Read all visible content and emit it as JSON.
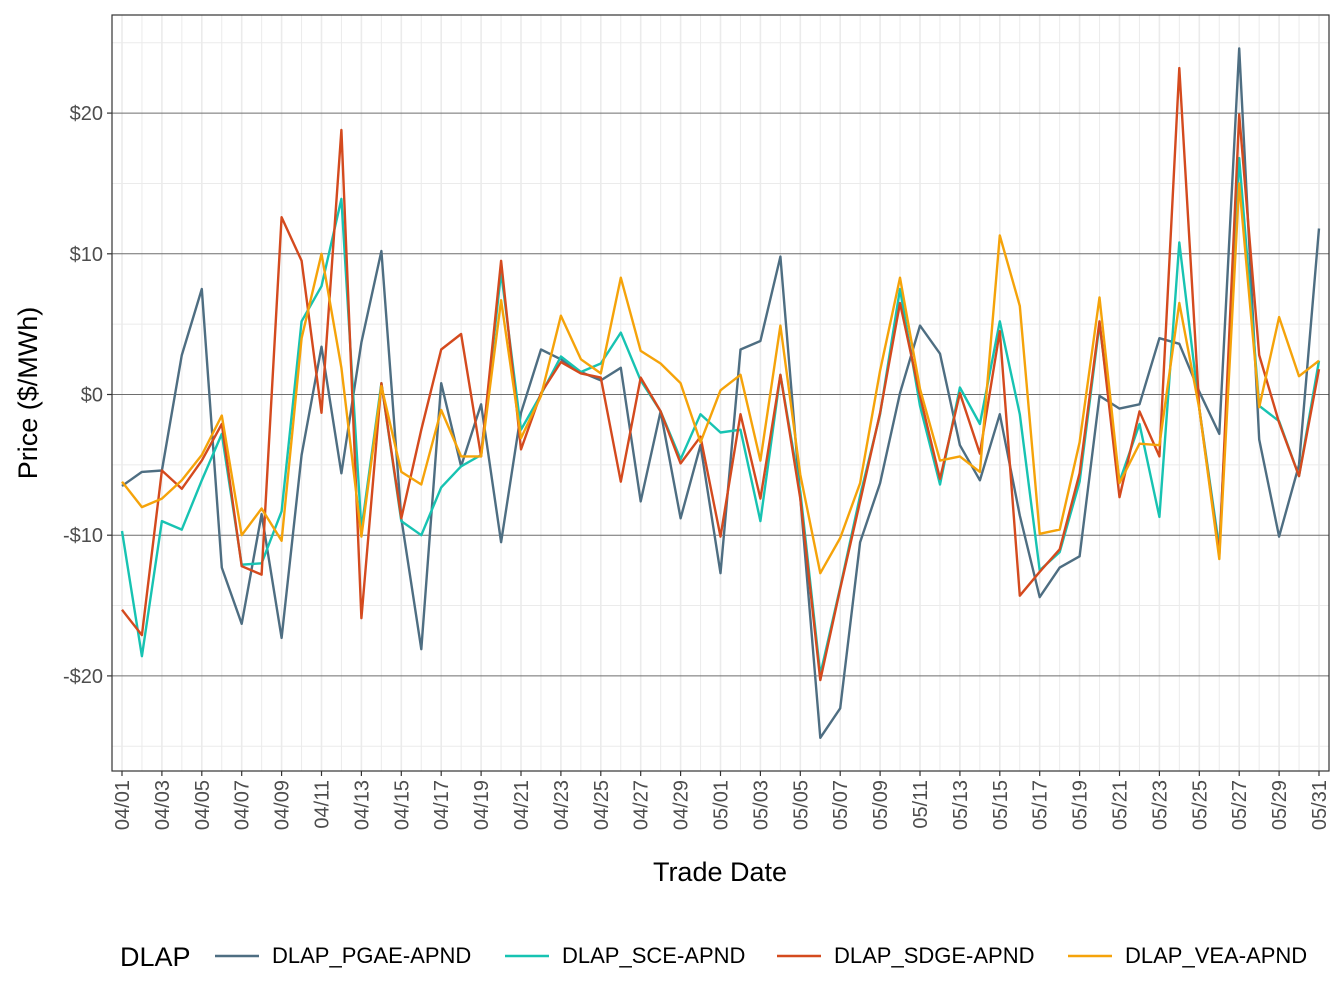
{
  "chart_data": {
    "type": "line",
    "xlabel": "Trade Date",
    "ylabel": "Price ($/MWh)",
    "ylim": [
      -26.5,
      27
    ],
    "yticks": [
      -20,
      -10,
      0,
      10,
      20
    ],
    "ytick_labels": [
      "-$20",
      "-$10",
      "$0",
      "$10",
      "$20"
    ],
    "grid": true,
    "legend_title": "DLAP",
    "legend_position": "bottom",
    "x": [
      "04/01",
      "04/02",
      "04/03",
      "04/04",
      "04/05",
      "04/06",
      "04/07",
      "04/08",
      "04/09",
      "04/10",
      "04/11",
      "04/12",
      "04/13",
      "04/14",
      "04/15",
      "04/16",
      "04/17",
      "04/18",
      "04/19",
      "04/20",
      "04/21",
      "04/22",
      "04/23",
      "04/24",
      "04/25",
      "04/26",
      "04/27",
      "04/28",
      "04/29",
      "04/30",
      "05/01",
      "05/02",
      "05/03",
      "05/04",
      "05/05",
      "05/06",
      "05/07",
      "05/08",
      "05/09",
      "05/10",
      "05/11",
      "05/12",
      "05/13",
      "05/14",
      "05/15",
      "05/16",
      "05/17",
      "05/18",
      "05/19",
      "05/20",
      "05/21",
      "05/22",
      "05/23",
      "05/24",
      "05/25",
      "05/26",
      "05/27",
      "05/28",
      "05/29",
      "05/30",
      "05/31"
    ],
    "x_tick_labels": [
      "04/01",
      "04/03",
      "04/05",
      "04/07",
      "04/09",
      "04/11",
      "04/13",
      "04/15",
      "04/17",
      "04/19",
      "04/21",
      "04/23",
      "04/25",
      "04/27",
      "04/29",
      "05/01",
      "05/03",
      "05/05",
      "05/07",
      "05/09",
      "05/11",
      "05/13",
      "05/15",
      "05/17",
      "05/19",
      "05/21",
      "05/23",
      "05/25",
      "05/27",
      "05/29",
      "05/31"
    ],
    "series": [
      {
        "name": "DLAP_PGAE-APND",
        "color": "#4e6e82",
        "values": [
          -6.5,
          -5.5,
          -5.4,
          2.8,
          7.5,
          -12.3,
          -16.3,
          -8.5,
          -17.3,
          -4.3,
          3.4,
          -5.6,
          3.7,
          10.2,
          -8.8,
          -18.1,
          0.8,
          -5.1,
          -0.7,
          -10.5,
          -1.3,
          3.2,
          2.5,
          1.6,
          1.0,
          1.9,
          -7.6,
          -1.2,
          -8.8,
          -3.6,
          -12.7,
          3.2,
          3.8,
          9.8,
          -7.3,
          -24.4,
          -22.3,
          -10.5,
          -6.3,
          0.1,
          4.9,
          2.9,
          -3.6,
          -6.1,
          -1.4,
          -8.6,
          -14.4,
          -12.3,
          -11.5,
          -0.1,
          -1.0,
          -0.7,
          4.0,
          3.6,
          0.2,
          -2.8,
          24.6,
          -3.2,
          -10.1,
          -5.0,
          11.8
        ]
      },
      {
        "name": "DLAP_SCE-APND",
        "color": "#17c3b2",
        "values": [
          -9.7,
          -18.6,
          -9.0,
          -9.6,
          -6.1,
          -2.8,
          -12.1,
          -12.0,
          -8.3,
          5.2,
          7.7,
          13.9,
          -9.6,
          0.8,
          -9.0,
          -10.0,
          -6.6,
          -5.1,
          -4.3,
          8.7,
          -2.5,
          0.0,
          2.7,
          1.6,
          2.2,
          4.4,
          1.0,
          -1.2,
          -4.6,
          -1.4,
          -2.7,
          -2.5,
          -9.0,
          1.4,
          -6.9,
          -19.9,
          -13.7,
          -7.2,
          -1.4,
          7.5,
          -0.8,
          -6.4,
          0.5,
          -2.1,
          5.2,
          -1.4,
          -12.5,
          -11.2,
          -6.2,
          5.0,
          -6.2,
          -2.1,
          -8.7,
          10.8,
          -1.0,
          -10.9,
          16.8,
          -0.8,
          -1.9,
          -5.8,
          2.4
        ]
      },
      {
        "name": "DLAP_SDGE-APND",
        "color": "#d44a1e",
        "values": [
          -15.3,
          -17.1,
          -5.4,
          -6.7,
          -4.7,
          -2.1,
          -12.2,
          -12.8,
          12.6,
          9.5,
          -1.3,
          18.8,
          -15.9,
          0.8,
          -8.8,
          -2.5,
          3.2,
          4.3,
          -4.4,
          9.5,
          -3.9,
          0.1,
          2.3,
          1.5,
          1.2,
          -6.2,
          1.2,
          -1.2,
          -4.9,
          -3.0,
          -10.1,
          -1.4,
          -7.4,
          1.4,
          -7.4,
          -20.3,
          -13.8,
          -7.6,
          -1.3,
          6.5,
          -0.1,
          -6.0,
          0.1,
          -4.2,
          4.5,
          -14.3,
          -12.6,
          -11.0,
          -5.6,
          5.2,
          -7.3,
          -1.2,
          -4.4,
          23.2,
          -1.0,
          -11.4,
          19.9,
          2.8,
          -2.0,
          -5.8,
          1.8
        ]
      },
      {
        "name": "DLAP_VEA-APND",
        "color": "#f5a30a",
        "values": [
          -6.2,
          -8.0,
          -7.4,
          -6.1,
          -4.3,
          -1.5,
          -10.0,
          -8.1,
          -10.4,
          4.0,
          10.0,
          1.9,
          -10.1,
          0.6,
          -5.5,
          -6.4,
          -1.1,
          -4.4,
          -4.4,
          6.7,
          -3.1,
          -0.1,
          5.6,
          2.5,
          1.5,
          8.3,
          3.1,
          2.2,
          0.8,
          -3.4,
          0.3,
          1.4,
          -4.7,
          4.9,
          -5.7,
          -12.7,
          -10.2,
          -6.3,
          1.7,
          8.3,
          0.4,
          -4.7,
          -4.4,
          -5.5,
          11.3,
          6.3,
          -9.9,
          -9.6,
          -3.4,
          6.9,
          -6.3,
          -3.5,
          -3.6,
          6.5,
          -1.0,
          -11.7,
          15.0,
          -0.9,
          5.5,
          1.3,
          2.4
        ]
      }
    ]
  }
}
